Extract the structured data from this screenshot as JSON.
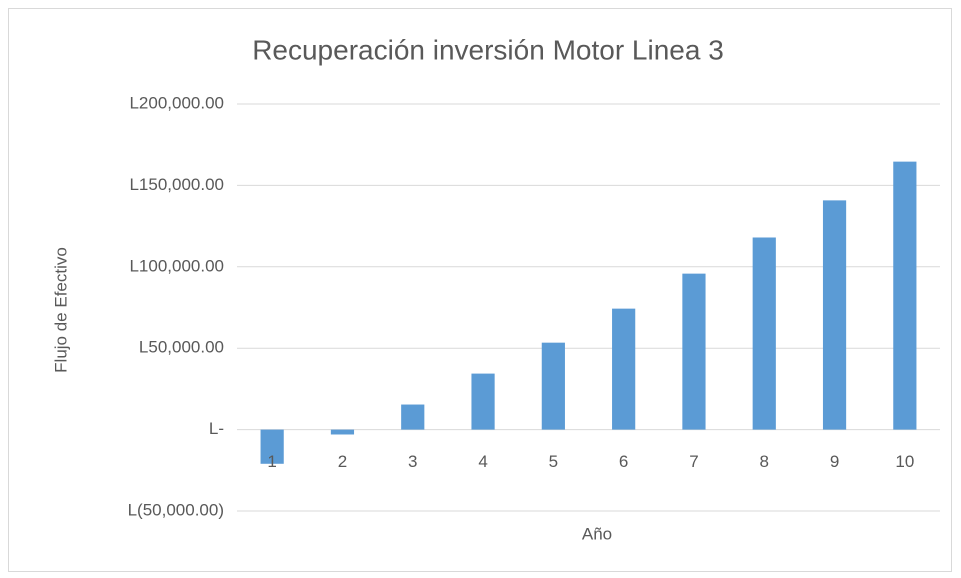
{
  "chart_data": {
    "type": "bar",
    "title": "Recuperación inversión Motor Linea 3",
    "x_label": "Año",
    "y_label": "Flujo de Efectivo",
    "categories": [
      "1",
      "2",
      "3",
      "4",
      "5",
      "6",
      "7",
      "8",
      "9",
      "10"
    ],
    "values": [
      -21000,
      -3000,
      15400,
      34400,
      53400,
      74300,
      95800,
      118000,
      140800,
      164600
    ],
    "color": "#5b9bd5",
    "ylim": [
      -50000,
      200000
    ],
    "yticks": [
      {
        "value": -50000,
        "label": "L(50,000.00)"
      },
      {
        "value": 0,
        "label": "L-"
      },
      {
        "value": 50000,
        "label": "L50,000.00"
      },
      {
        "value": 100000,
        "label": "L100,000.00"
      },
      {
        "value": 150000,
        "label": "L150,000.00"
      },
      {
        "value": 200000,
        "label": "L200,000.00"
      }
    ],
    "grid": true
  }
}
